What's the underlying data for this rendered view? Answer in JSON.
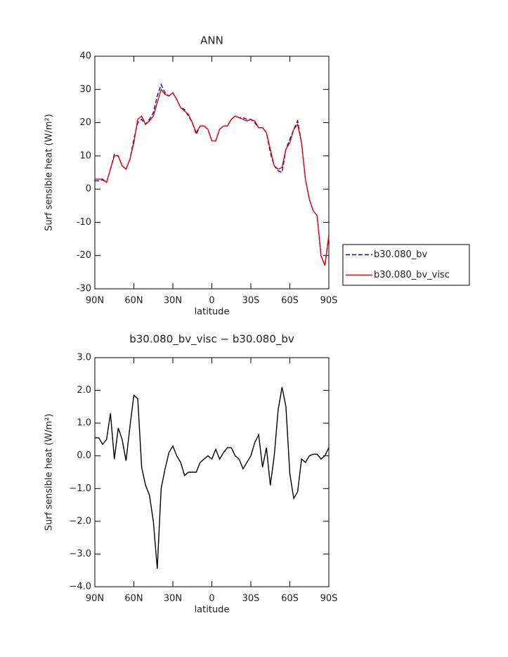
{
  "chart_data": [
    {
      "type": "line",
      "title": "ANN",
      "xlabel": "latitude",
      "ylabel": "Surf sensible heat (W/m²)",
      "x": [
        90,
        87,
        84,
        81,
        78,
        75,
        72,
        69,
        66,
        63,
        60,
        57,
        54,
        51,
        48,
        45,
        42,
        39,
        36,
        33,
        30,
        27,
        24,
        21,
        18,
        15,
        12,
        9,
        6,
        3,
        0,
        -3,
        -6,
        -9,
        -12,
        -15,
        -18,
        -21,
        -24,
        -27,
        -30,
        -33,
        -36,
        -39,
        -42,
        -45,
        -48,
        -51,
        -54,
        -57,
        -60,
        -63,
        -66,
        -69,
        -72,
        -75,
        -78,
        -81,
        -84,
        -87,
        -90
      ],
      "series": [
        {
          "name": "b30.080_bv",
          "color": "#0000cc",
          "dash": true,
          "values": [
            2.5,
            2.5,
            2.8,
            2,
            6,
            10.5,
            10,
            7,
            6,
            9,
            15,
            20,
            21,
            19.5,
            21,
            23,
            28,
            31.5,
            29,
            28,
            29,
            27,
            24.5,
            24,
            22,
            20,
            16.5,
            19,
            19,
            18,
            14.5,
            14.5,
            18,
            19,
            19,
            21,
            22,
            21.5,
            21.5,
            21,
            21,
            20,
            18.5,
            18.5,
            17,
            11,
            7,
            5.5,
            5,
            12,
            15,
            18,
            20.5,
            14,
            3,
            -3,
            -6.5,
            -8,
            -20,
            -23,
            -14
          ]
        },
        {
          "name": "b30.080_bv_visc",
          "color": "#ee0000",
          "dash": false,
          "values": [
            3,
            3,
            3,
            2,
            6,
            10,
            10,
            7,
            6,
            9,
            14,
            21,
            22,
            19.5,
            20.5,
            22,
            26,
            30,
            28.5,
            28,
            29,
            27,
            24.5,
            23.5,
            22.5,
            20,
            17,
            19,
            19,
            18,
            14.5,
            14.5,
            18,
            19,
            19,
            21,
            22,
            21.5,
            21,
            20.5,
            21,
            20.5,
            18.5,
            18.5,
            17,
            12,
            7,
            6,
            6.5,
            12,
            14,
            18,
            19.5,
            14,
            3,
            -3,
            -6.5,
            -8,
            -20,
            -23,
            -14
          ]
        }
      ],
      "xlim": [
        90,
        -90
      ],
      "xticks": [
        {
          "value": 90,
          "label": "90N"
        },
        {
          "value": 60,
          "label": "60N"
        },
        {
          "value": 30,
          "label": "30N"
        },
        0,
        {
          "value": -30,
          "label": "30S"
        },
        {
          "value": -60,
          "label": "60S"
        },
        {
          "value": -90,
          "label": "90S"
        }
      ],
      "ylim": [
        -30,
        40
      ],
      "yticks": [
        -30,
        -20,
        -10,
        0,
        10,
        20,
        30,
        40
      ],
      "legend": "right"
    },
    {
      "type": "line",
      "title": "b30.080_bv_visc − b30.080_bv",
      "xlabel": "latitude",
      "ylabel": "Surf sensible heat (W/m²)",
      "x": [
        90,
        87,
        84,
        81,
        78,
        75,
        72,
        69,
        66,
        63,
        60,
        57,
        54,
        51,
        48,
        45,
        42,
        39,
        36,
        33,
        30,
        27,
        24,
        21,
        18,
        15,
        12,
        9,
        6,
        3,
        0,
        -3,
        -6,
        -9,
        -12,
        -15,
        -18,
        -21,
        -24,
        -27,
        -30,
        -33,
        -36,
        -39,
        -42,
        -45,
        -48,
        -51,
        -54,
        -57,
        -60,
        -63,
        -66,
        -69,
        -72,
        -75,
        -78,
        -81,
        -84,
        -87,
        -90
      ],
      "series": [
        {
          "color": "#000000",
          "dash": false,
          "values": [
            0.55,
            0.55,
            0.35,
            0.5,
            1.3,
            -0.1,
            0.85,
            0.5,
            -0.15,
            0.9,
            1.85,
            1.75,
            -0.35,
            -0.9,
            -1.2,
            -2.0,
            -3.45,
            -1.0,
            -0.4,
            0.1,
            0.3,
            0.0,
            -0.2,
            -0.6,
            -0.5,
            -0.5,
            -0.5,
            -0.2,
            -0.1,
            0.0,
            -0.1,
            0.2,
            -0.1,
            0.1,
            0.25,
            0.25,
            0.0,
            -0.1,
            -0.4,
            -0.2,
            0.0,
            0.4,
            0.65,
            -0.35,
            0.25,
            -0.9,
            0.0,
            1.4,
            2.1,
            1.5,
            -0.55,
            -1.3,
            -1.1,
            -0.1,
            -0.2,
            0.0,
            0.05,
            0.05,
            -0.1,
            0.0,
            0.25
          ]
        }
      ],
      "xlim": [
        90,
        -90
      ],
      "xticks": [
        {
          "value": 90,
          "label": "90N"
        },
        {
          "value": 60,
          "label": "60N"
        },
        {
          "value": 30,
          "label": "30N"
        },
        0,
        {
          "value": -30,
          "label": "30S"
        },
        {
          "value": -60,
          "label": "60S"
        },
        {
          "value": -90,
          "label": "90S"
        }
      ],
      "ylim": [
        -4,
        3
      ],
      "yticks": [
        {
          "value": -4,
          "label": "−4.0"
        },
        {
          "value": -3,
          "label": "−3.0"
        },
        {
          "value": -2,
          "label": "−2.0"
        },
        {
          "value": -1,
          "label": "−1.0"
        },
        {
          "value": 0,
          "label": "0.0"
        },
        {
          "value": 1,
          "label": "1.0"
        },
        {
          "value": 2,
          "label": "2.0"
        },
        {
          "value": 3,
          "label": "3.0"
        }
      ]
    }
  ]
}
